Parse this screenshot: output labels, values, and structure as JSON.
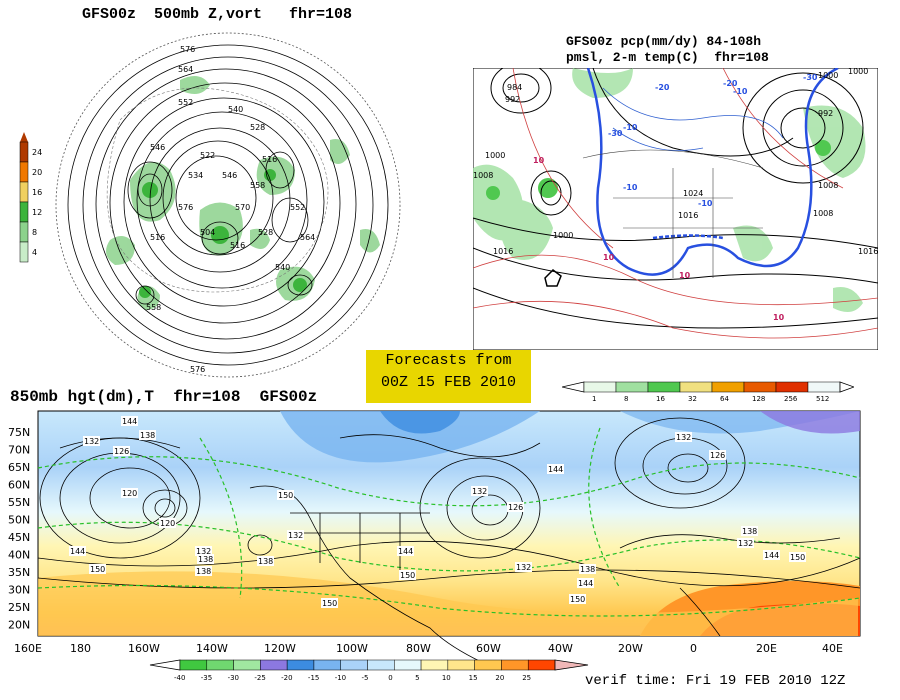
{
  "panel_500": {
    "title": "GFS00z  500mb Z,vort   fhr=108",
    "scale_values": [
      "24",
      "20",
      "16",
      "12",
      "8",
      "4"
    ],
    "scale_colors": [
      "#b03a00",
      "#f07800",
      "#f0d060",
      "#3cb43c",
      "#8cd28c",
      "#c8ecc8"
    ],
    "contour_labels": [
      "576",
      "564",
      "552",
      "540",
      "528",
      "516",
      "522",
      "534",
      "546",
      "558",
      "570",
      "576",
      "546",
      "504",
      "516",
      "528",
      "540",
      "552",
      "564",
      "516",
      "558",
      "576"
    ]
  },
  "panel_pcp": {
    "title_line1": "GFS00z pcp(mm/dy) 84-108h",
    "title_line2": "pmsl, 2-m temp(C)  fhr=108",
    "pressure_labels": [
      "984",
      "992",
      "1000",
      "1000",
      "1008",
      "1016",
      "1016",
      "1024",
      "1000",
      "992",
      "1008",
      "1016",
      "1008",
      "1000"
    ],
    "temp_labels": [
      "-10",
      "-20",
      "-30",
      "-10",
      "-10",
      "10",
      "10",
      "10",
      "-10",
      "-20",
      "-30",
      "10"
    ],
    "scale_values": [
      "1",
      "8",
      "16",
      "32",
      "64",
      "128",
      "256",
      "512"
    ],
    "scale_colors": [
      "#e8f8e8",
      "#a0e0a0",
      "#50c850",
      "#f0e080",
      "#f0a000",
      "#e85a00",
      "#e03000",
      "#f0f8f8"
    ]
  },
  "forecast_box": {
    "line1": "Forecasts from",
    "line2": "00Z 15 FEB 2010"
  },
  "panel_850": {
    "title": "850mb hgt(dm),T  fhr=108  GFS00z",
    "lat_labels": [
      "75N",
      "70N",
      "65N",
      "60N",
      "55N",
      "50N",
      "45N",
      "40N",
      "35N",
      "30N",
      "25N",
      "20N"
    ],
    "lon_labels": [
      "160E",
      "180",
      "160W",
      "140W",
      "120W",
      "100W",
      "80W",
      "60W",
      "40W",
      "20W",
      "0",
      "20E",
      "40E"
    ],
    "height_labels": [
      "144",
      "138",
      "132",
      "126",
      "120",
      "120",
      "144",
      "150",
      "138",
      "132",
      "138",
      "150",
      "144",
      "150",
      "150",
      "144",
      "132",
      "126",
      "132",
      "138",
      "150",
      "144",
      "132",
      "126",
      "138",
      "132",
      "144",
      "150",
      "132",
      "138"
    ],
    "scale_values": [
      "-40",
      "-35",
      "-30",
      "-25",
      "-20",
      "-15",
      "-10",
      "-5",
      "0",
      "5",
      "10",
      "15",
      "20",
      "25"
    ],
    "scale_colors": [
      "#40c840",
      "#70d870",
      "#a0e8a0",
      "#8c78e0",
      "#3c8ce0",
      "#78b4f0",
      "#aad2f8",
      "#c8e8fc",
      "#e6f8fc",
      "#fff6b4",
      "#ffe68c",
      "#ffc850",
      "#ff9628",
      "#ff4600"
    ]
  },
  "verif_time": "verif time: Fri 19 FEB 2010 12Z"
}
